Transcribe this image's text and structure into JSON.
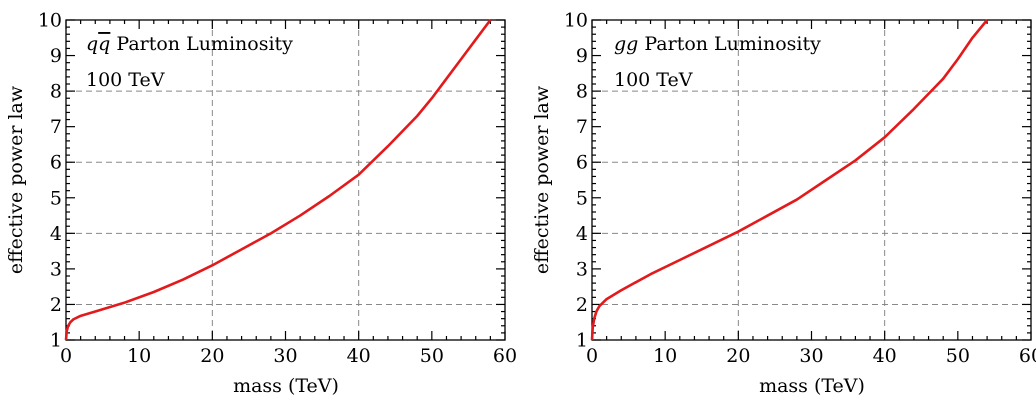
{
  "colors": {
    "curve": "#e31a1c",
    "grid": "#888888",
    "axis": "#000000"
  },
  "chart_data": [
    {
      "type": "line",
      "annotation_prefix": "q",
      "annotation_prefix2": "q",
      "annotation_suffix": " Parton Luminosity",
      "annotation_energy": "100 TeV",
      "xlabel": "mass (TeV)",
      "ylabel": "effective power law",
      "xlim": [
        0,
        60
      ],
      "ylim": [
        1,
        10
      ],
      "xticks": [
        0,
        10,
        20,
        30,
        40,
        50,
        60
      ],
      "yticks": [
        1,
        2,
        3,
        4,
        5,
        6,
        7,
        8,
        9,
        10
      ],
      "grid": true,
      "series": [
        {
          "x": [
            0,
            0.1,
            0.3,
            0.6,
            1,
            2,
            4,
            8,
            12,
            16,
            20,
            24,
            28,
            32,
            36,
            40,
            44,
            48,
            50,
            52,
            54,
            56,
            58
          ],
          "y": [
            1.0,
            1.25,
            1.4,
            1.5,
            1.58,
            1.68,
            1.8,
            2.05,
            2.35,
            2.7,
            3.1,
            3.55,
            4.0,
            4.5,
            5.05,
            5.65,
            6.45,
            7.3,
            7.8,
            8.35,
            8.9,
            9.45,
            10.0
          ]
        }
      ]
    },
    {
      "type": "line",
      "annotation_prefix": "gg",
      "annotation_suffix": " Parton Luminosity",
      "annotation_energy": "100 TeV",
      "xlabel": "mass (TeV)",
      "ylabel": "effective power law",
      "xlim": [
        0,
        60
      ],
      "ylim": [
        1,
        10
      ],
      "xticks": [
        0,
        10,
        20,
        30,
        40,
        50,
        60
      ],
      "yticks": [
        1,
        2,
        3,
        4,
        5,
        6,
        7,
        8,
        9,
        10
      ],
      "grid": true,
      "series": [
        {
          "x": [
            0,
            0.1,
            0.3,
            0.6,
            1,
            2,
            4,
            8,
            12,
            16,
            20,
            24,
            28,
            32,
            36,
            40,
            44,
            48,
            50,
            52,
            54
          ],
          "y": [
            1.0,
            1.35,
            1.6,
            1.8,
            1.95,
            2.15,
            2.4,
            2.85,
            3.25,
            3.65,
            4.05,
            4.5,
            4.95,
            5.5,
            6.05,
            6.7,
            7.5,
            8.35,
            8.9,
            9.5,
            10.0
          ]
        }
      ]
    }
  ]
}
